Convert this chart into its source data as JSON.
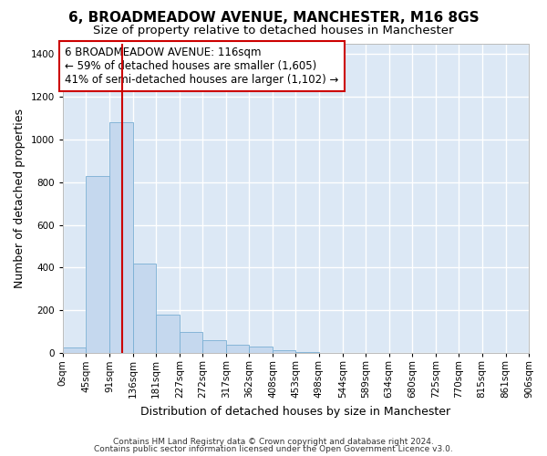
{
  "title": "6, BROADMEADOW AVENUE, MANCHESTER, M16 8GS",
  "subtitle": "Size of property relative to detached houses in Manchester",
  "xlabel": "Distribution of detached houses by size in Manchester",
  "ylabel": "Number of detached properties",
  "bar_color": "#c5d8ee",
  "bar_edge_color": "#7aafd4",
  "bin_edges": [
    0,
    45,
    91,
    136,
    181,
    227,
    272,
    317,
    362,
    408,
    453,
    498,
    544,
    589,
    634,
    680,
    725,
    770,
    815,
    861,
    906
  ],
  "bin_labels": [
    "0sqm",
    "45sqm",
    "91sqm",
    "136sqm",
    "181sqm",
    "227sqm",
    "272sqm",
    "317sqm",
    "362sqm",
    "408sqm",
    "453sqm",
    "498sqm",
    "544sqm",
    "589sqm",
    "634sqm",
    "680sqm",
    "725sqm",
    "770sqm",
    "815sqm",
    "861sqm",
    "906sqm"
  ],
  "bar_heights": [
    25,
    830,
    1080,
    420,
    180,
    100,
    60,
    40,
    30,
    15,
    5,
    2,
    1,
    0,
    0,
    0,
    0,
    0,
    0,
    0
  ],
  "vline_x": 116,
  "vline_color": "#cc0000",
  "ylim": [
    0,
    1450
  ],
  "yticks": [
    0,
    200,
    400,
    600,
    800,
    1000,
    1200,
    1400
  ],
  "annotation_text": "6 BROADMEADOW AVENUE: 116sqm\n← 59% of detached houses are smaller (1,605)\n41% of semi-detached houses are larger (1,102) →",
  "annotation_box_color": "#ffffff",
  "annotation_box_edge": "#cc0000",
  "footer1": "Contains HM Land Registry data © Crown copyright and database right 2024.",
  "footer2": "Contains public sector information licensed under the Open Government Licence v3.0.",
  "fig_background_color": "#ffffff",
  "plot_bg_color": "#dce8f5",
  "grid_color": "#ffffff",
  "title_fontsize": 11,
  "subtitle_fontsize": 9.5,
  "axis_label_fontsize": 9,
  "tick_fontsize": 7.5,
  "annotation_fontsize": 8.5,
  "footer_fontsize": 6.5
}
